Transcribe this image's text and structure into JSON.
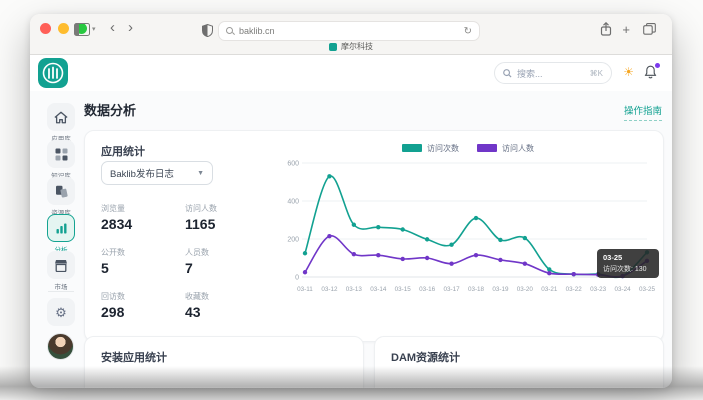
{
  "colors": {
    "brand": "#12a191",
    "purple": "#7036c8",
    "notification_dot": "#7c3aed",
    "sun": "#f6a723"
  },
  "browser": {
    "address": "baklib.cn",
    "tab_title": "摩尔科技"
  },
  "header": {
    "search_placeholder": "搜索...",
    "search_shortcut": "⌘K"
  },
  "page": {
    "title": "数据分析",
    "guide_link": "操作指南"
  },
  "sidebar": {
    "items": [
      {
        "label": "应用库",
        "active": false
      },
      {
        "label": "知识库",
        "active": false
      },
      {
        "label": "资源库",
        "active": false
      },
      {
        "label": "分析",
        "active": true
      },
      {
        "label": "市场",
        "active": false
      }
    ]
  },
  "app_stats": {
    "title": "应用统计",
    "selector_value": "Baklib发布日志",
    "metrics": [
      {
        "label": "浏览量",
        "value": "2834"
      },
      {
        "label": "访问人数",
        "value": "1165"
      },
      {
        "label": "公开数",
        "value": "5"
      },
      {
        "label": "人员数",
        "value": "7"
      },
      {
        "label": "回访数",
        "value": "298"
      },
      {
        "label": "收藏数",
        "value": "43"
      }
    ]
  },
  "chart_data": {
    "type": "line",
    "title": "",
    "xlabel": "",
    "ylabel": "",
    "x": [
      "03-11",
      "03-12",
      "03-13",
      "03-14",
      "03-15",
      "03-16",
      "03-17",
      "03-18",
      "03-19",
      "03-20",
      "03-21",
      "03-22",
      "03-23",
      "03-24",
      "03-25"
    ],
    "series": [
      {
        "name": "访问次数",
        "color": "#12a191",
        "values": [
          125,
          530,
          275,
          262,
          250,
          198,
          170,
          310,
          195,
          205,
          40,
          15,
          15,
          5,
          130
        ]
      },
      {
        "name": "访问人数",
        "color": "#7036c8",
        "values": [
          25,
          215,
          120,
          115,
          95,
          100,
          70,
          115,
          90,
          70,
          20,
          15,
          12,
          5,
          85
        ]
      }
    ],
    "yticks": [
      0,
      200,
      400,
      600
    ],
    "ylim": [
      0,
      600
    ],
    "grid": true,
    "legend_position": "top",
    "tooltip": {
      "title": "03-25",
      "text": "访问次数: 130"
    }
  },
  "bottom_cards": [
    {
      "title": "安装应用统计"
    },
    {
      "title": "DAM资源统计"
    }
  ]
}
